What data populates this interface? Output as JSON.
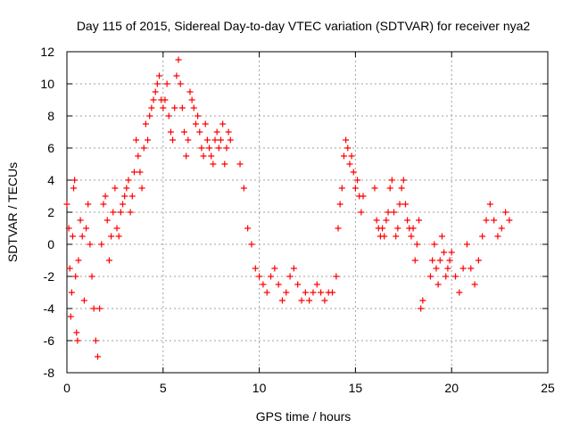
{
  "chart_data": {
    "type": "scatter",
    "title": "Day 115 of 2015, Sidereal Day-to-day VTEC variation (SDTVAR) for receiver nya2",
    "xlabel": "GPS time / hours",
    "ylabel": "SDTVAR / TECUs",
    "xlim": [
      0,
      25
    ],
    "ylim": [
      -8,
      12
    ],
    "xticks": [
      "0",
      "5",
      "10",
      "15",
      "20",
      "25"
    ],
    "yticks": [
      "-8",
      "-6",
      "-4",
      "-2",
      "0",
      "2",
      "4",
      "6",
      "8",
      "10",
      "12"
    ],
    "grid": true,
    "marker": "+",
    "color": "#ff0000",
    "series": [
      {
        "name": "nya2",
        "x": [
          0.0,
          0.1,
          0.15,
          0.2,
          0.25,
          0.3,
          0.35,
          0.4,
          0.45,
          0.5,
          0.55,
          0.6,
          0.7,
          0.8,
          0.9,
          1.0,
          1.1,
          1.2,
          1.3,
          1.4,
          1.5,
          1.6,
          1.7,
          1.8,
          1.9,
          2.0,
          2.1,
          2.2,
          2.3,
          2.4,
          2.5,
          2.6,
          2.7,
          2.8,
          2.9,
          3.0,
          3.1,
          3.2,
          3.3,
          3.4,
          3.5,
          3.6,
          3.7,
          3.8,
          3.9,
          4.0,
          4.1,
          4.2,
          4.3,
          4.4,
          4.5,
          4.6,
          4.7,
          4.8,
          4.9,
          5.0,
          5.1,
          5.2,
          5.3,
          5.4,
          5.5,
          5.6,
          5.7,
          5.8,
          5.9,
          6.0,
          6.1,
          6.2,
          6.3,
          6.4,
          6.5,
          6.6,
          6.7,
          6.8,
          6.9,
          7.0,
          7.1,
          7.2,
          7.3,
          7.4,
          7.5,
          7.6,
          7.7,
          7.8,
          7.9,
          8.0,
          8.1,
          8.2,
          8.3,
          8.4,
          8.5,
          9.0,
          9.2,
          9.4,
          9.6,
          9.8,
          10.0,
          10.2,
          10.4,
          10.6,
          10.8,
          11.0,
          11.2,
          11.4,
          11.6,
          11.8,
          12.0,
          12.2,
          12.4,
          12.6,
          12.8,
          13.0,
          13.2,
          13.4,
          13.6,
          13.8,
          14.0,
          14.1,
          14.2,
          14.3,
          14.4,
          14.5,
          14.6,
          14.7,
          14.8,
          14.9,
          15.0,
          15.1,
          15.2,
          15.3,
          15.4,
          16.0,
          16.1,
          16.2,
          16.3,
          16.4,
          16.5,
          16.6,
          16.7,
          16.8,
          16.9,
          17.0,
          17.1,
          17.2,
          17.3,
          17.4,
          17.5,
          17.6,
          17.7,
          17.8,
          17.9,
          18.0,
          18.1,
          18.2,
          18.3,
          18.4,
          18.5,
          18.9,
          19.0,
          19.1,
          19.2,
          19.3,
          19.4,
          19.5,
          19.6,
          19.7,
          19.8,
          19.9,
          20.0,
          20.2,
          20.4,
          20.6,
          20.8,
          21.0,
          21.2,
          21.4,
          21.6,
          21.8,
          22.0,
          22.2,
          22.4,
          22.6,
          22.8,
          23.0
        ],
        "values": [
          2.5,
          1.0,
          -1.5,
          -4.5,
          -3.0,
          0.5,
          3.5,
          4.0,
          -2.0,
          -5.5,
          -6.0,
          -1.0,
          1.5,
          0.5,
          -3.5,
          1.0,
          2.5,
          0.0,
          -2.0,
          -4.0,
          -6.0,
          -7.0,
          -4.0,
          0.0,
          2.5,
          3.0,
          1.5,
          -1.0,
          0.5,
          2.0,
          3.5,
          1.0,
          0.5,
          2.0,
          2.5,
          3.0,
          3.5,
          4.0,
          2.0,
          3.0,
          4.5,
          6.5,
          5.5,
          4.5,
          3.5,
          6.0,
          7.5,
          6.5,
          8.0,
          8.5,
          9.0,
          9.5,
          10.0,
          10.5,
          9.0,
          8.5,
          9.0,
          10.0,
          8.0,
          7.0,
          6.5,
          8.5,
          10.5,
          11.5,
          10.0,
          8.5,
          7.0,
          5.5,
          6.5,
          9.5,
          9.0,
          8.5,
          7.5,
          8.0,
          7.0,
          6.0,
          5.5,
          7.5,
          6.5,
          6.0,
          5.5,
          5.0,
          6.5,
          7.0,
          6.0,
          6.5,
          7.5,
          5.0,
          6.0,
          7.0,
          6.5,
          5.0,
          3.5,
          1.0,
          0.0,
          -1.5,
          -2.0,
          -2.5,
          -3.0,
          -2.0,
          -1.5,
          -2.5,
          -3.5,
          -3.0,
          -2.0,
          -1.5,
          -2.5,
          -3.5,
          -3.0,
          -3.5,
          -3.0,
          -2.5,
          -3.0,
          -3.5,
          -3.0,
          -3.0,
          -2.0,
          1.0,
          2.5,
          3.5,
          5.5,
          6.5,
          6.0,
          5.0,
          5.5,
          4.5,
          3.5,
          4.0,
          3.0,
          2.0,
          3.0,
          3.5,
          1.5,
          1.0,
          0.5,
          1.0,
          0.5,
          1.5,
          2.0,
          3.5,
          4.0,
          2.0,
          0.5,
          1.0,
          2.5,
          3.5,
          4.0,
          2.5,
          1.5,
          1.0,
          0.5,
          1.0,
          -1.0,
          0.0,
          1.5,
          -4.0,
          -3.5,
          -2.0,
          -1.0,
          0.0,
          -1.5,
          -2.5,
          -1.0,
          0.5,
          -0.5,
          -2.0,
          -1.5,
          -1.0,
          -0.5,
          -2.0,
          -3.0,
          -1.5,
          0.0,
          -1.5,
          -2.5,
          -1.0,
          0.5,
          1.5,
          2.5,
          1.5,
          0.5,
          1.0,
          2.0,
          1.5
        ]
      }
    ]
  }
}
